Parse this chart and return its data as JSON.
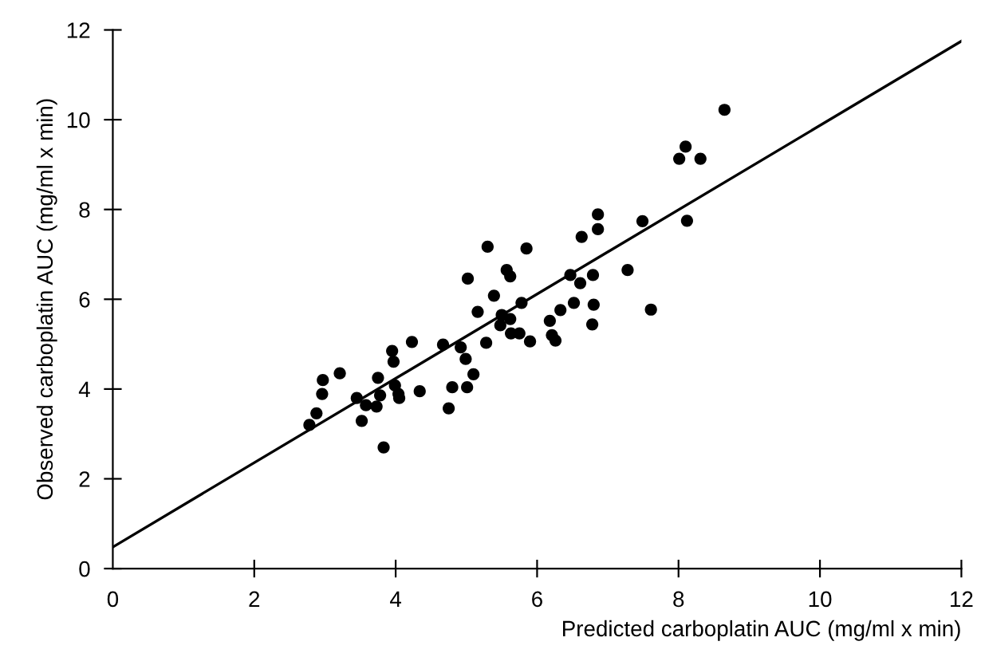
{
  "chart_data": {
    "type": "scatter",
    "xlabel": "Predicted carboplatin AUC (mg/ml x min)",
    "ylabel": "Observed carboplatin AUC (mg/ml x min)",
    "xlim": [
      0,
      12
    ],
    "ylim": [
      0,
      12
    ],
    "xticks": [
      0,
      2,
      4,
      6,
      8,
      10,
      12
    ],
    "yticks": [
      0,
      2,
      4,
      6,
      8,
      10,
      12
    ],
    "grid": false,
    "legend": false,
    "marker": "circle",
    "series": [
      {
        "color": "#000000",
        "x": [
          2.78,
          2.88,
          2.96,
          2.97,
          3.21,
          3.45,
          3.52,
          3.58,
          3.73,
          3.75,
          3.78,
          3.83,
          3.95,
          3.97,
          3.99,
          4.04,
          4.05,
          4.23,
          4.34,
          4.67,
          4.75,
          4.8,
          4.92,
          4.99,
          5.01,
          5.1,
          5.02,
          5.16,
          5.28,
          5.3,
          5.39,
          5.48,
          5.5,
          5.57,
          5.62,
          5.62,
          5.63,
          5.75,
          5.78,
          5.85,
          5.9,
          6.18,
          6.21,
          6.26,
          6.33,
          6.47,
          6.52,
          6.61,
          6.63,
          6.78,
          6.79,
          6.8,
          6.86,
          6.86,
          7.28,
          7.49,
          7.61,
          8.12,
          8.01,
          8.1,
          8.31,
          8.65
        ],
        "values": [
          3.2,
          3.46,
          3.89,
          4.2,
          4.35,
          3.8,
          3.29,
          3.64,
          3.61,
          4.25,
          3.86,
          2.7,
          4.85,
          4.61,
          4.08,
          3.89,
          3.8,
          5.05,
          3.95,
          4.99,
          3.57,
          4.04,
          4.93,
          4.67,
          4.04,
          4.33,
          6.46,
          5.72,
          5.03,
          7.17,
          6.08,
          5.42,
          5.65,
          6.65,
          6.51,
          5.56,
          5.24,
          5.24,
          5.92,
          7.13,
          5.06,
          5.52,
          5.2,
          5.08,
          5.76,
          6.54,
          5.92,
          6.36,
          7.39,
          5.44,
          6.54,
          5.88,
          7.89,
          7.56,
          6.65,
          7.74,
          5.77,
          7.75,
          9.13,
          9.4,
          9.13,
          10.22
        ]
      },
      {
        "type": "line",
        "color": "#000000",
        "x": [
          0,
          12
        ],
        "values": [
          0.48,
          11.75
        ],
        "line_style": "solid",
        "marker": "none"
      }
    ]
  }
}
